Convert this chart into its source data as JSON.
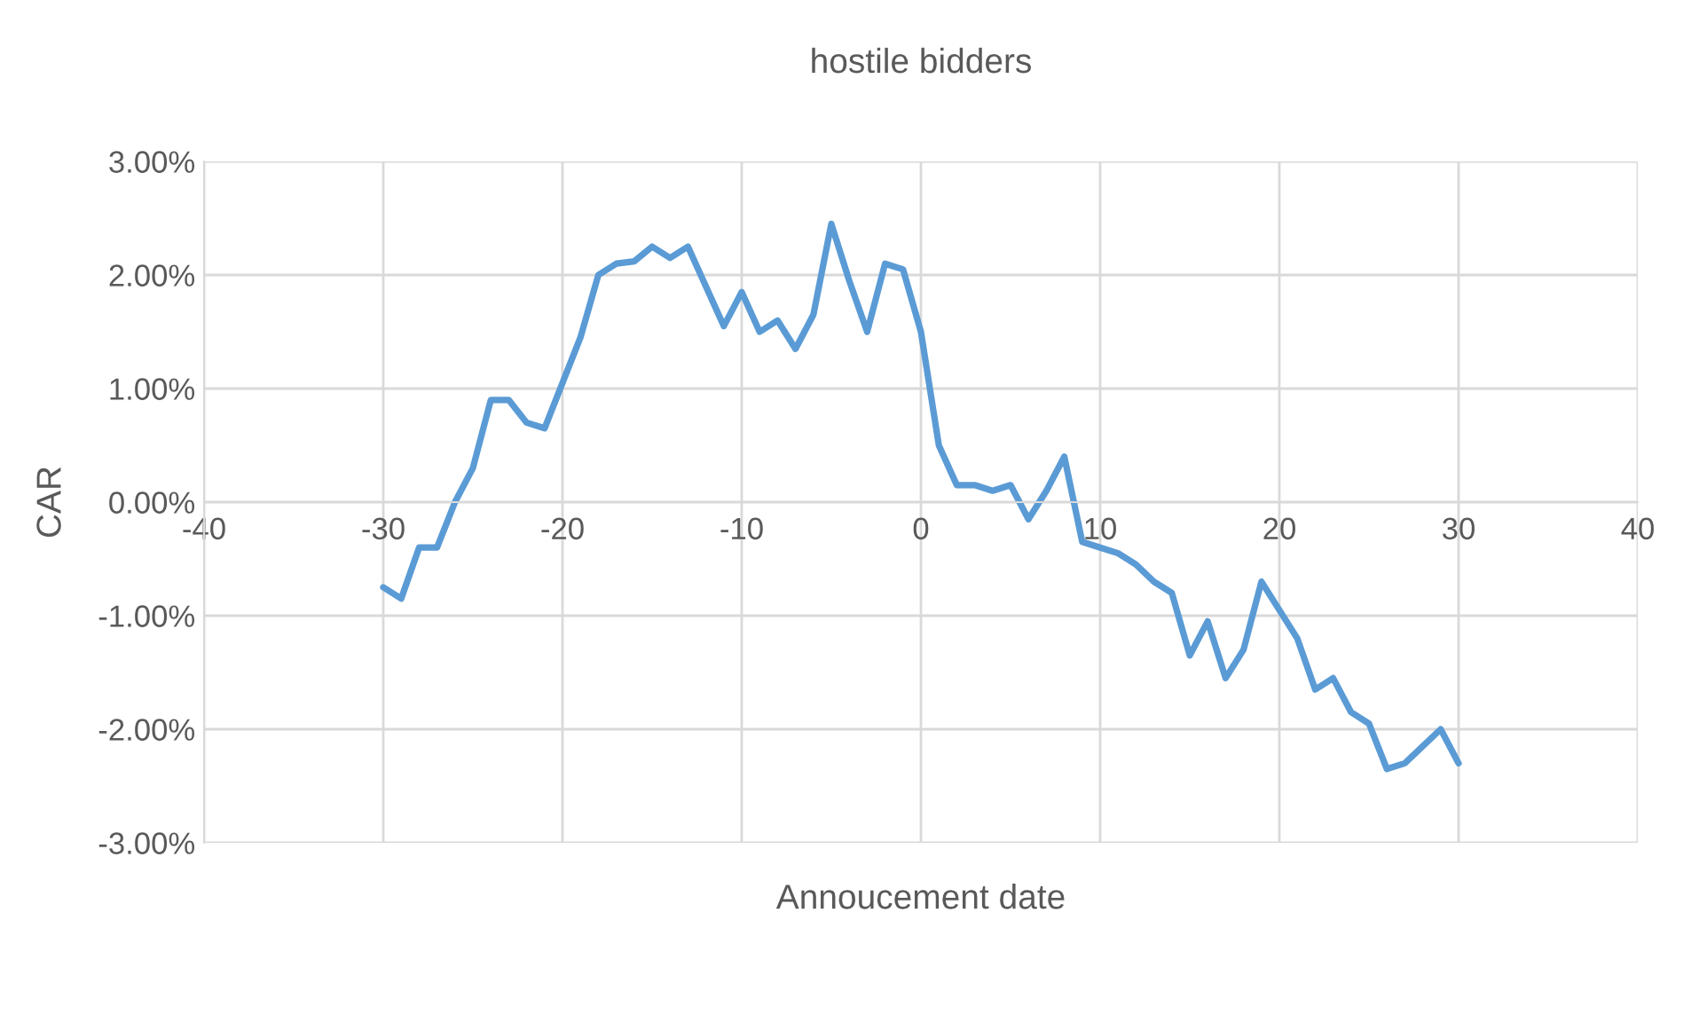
{
  "chart_data": {
    "type": "line",
    "title": "hostile bidders",
    "xlabel": "Annoucement date",
    "ylabel": "CAR",
    "x": [
      -30,
      -29,
      -28,
      -27,
      -26,
      -25,
      -24,
      -23,
      -22,
      -21,
      -20,
      -19,
      -18,
      -17,
      -16,
      -15,
      -14,
      -13,
      -12,
      -11,
      -10,
      -9,
      -8,
      -7,
      -6,
      -5,
      -4,
      -3,
      -2,
      -1,
      0,
      1,
      2,
      3,
      4,
      5,
      6,
      7,
      8,
      9,
      10,
      11,
      12,
      13,
      14,
      15,
      16,
      17,
      18,
      19,
      20,
      21,
      22,
      23,
      24,
      25,
      26,
      27,
      28,
      29,
      30
    ],
    "series": [
      {
        "color": "#5b9bd5",
        "values": [
          -0.75,
          -0.85,
          -0.4,
          -0.4,
          0.0,
          0.3,
          0.9,
          0.9,
          0.7,
          0.65,
          1.05,
          1.45,
          2.0,
          2.1,
          2.12,
          2.25,
          2.15,
          2.25,
          1.9,
          1.55,
          1.85,
          1.5,
          1.6,
          1.35,
          1.65,
          2.45,
          1.95,
          1.5,
          2.1,
          2.05,
          1.5,
          0.5,
          0.15,
          0.15,
          0.1,
          0.15,
          -0.15,
          0.1,
          0.4,
          -0.35,
          -0.4,
          -0.45,
          -0.55,
          -0.7,
          -0.8,
          -1.35,
          -1.05,
          -1.55,
          -1.3,
          -0.7,
          -0.95,
          -1.2,
          -1.65,
          -1.55,
          -1.85,
          -1.95,
          -2.35,
          -2.3,
          -2.15,
          -2.0,
          -2.3
        ]
      }
    ],
    "xlim": [
      -40,
      40
    ],
    "xticks": [
      -40,
      -30,
      -20,
      -10,
      0,
      10,
      20,
      30,
      40
    ],
    "ylim": [
      -3,
      3
    ],
    "yticks": [
      {
        "value": -3,
        "label": "-3.00%"
      },
      {
        "value": -2,
        "label": "-2.00%"
      },
      {
        "value": -1,
        "label": "-1.00%"
      },
      {
        "value": 0,
        "label": "0.00%"
      },
      {
        "value": 1,
        "label": "1.00%"
      },
      {
        "value": 2,
        "label": "2.00%"
      },
      {
        "value": 3,
        "label": "3.00%"
      }
    ],
    "grid": true,
    "marker": "none",
    "line_style": "solid"
  }
}
